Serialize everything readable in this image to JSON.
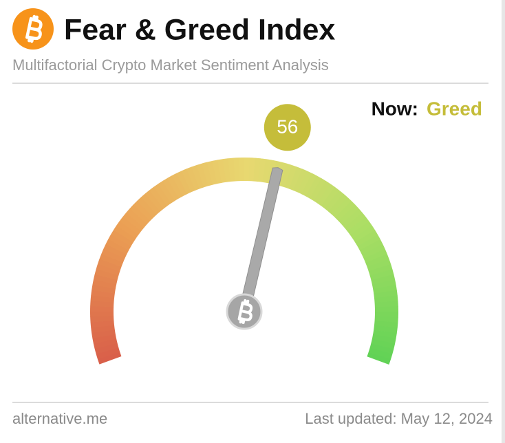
{
  "chart_data": {
    "type": "gauge",
    "title": "Fear & Greed Index",
    "subtitle": "Multifactorial Crypto Market Sentiment Analysis",
    "value": 56,
    "ylim": [
      0,
      100
    ],
    "status_prefix": "Now:",
    "status": "Greed",
    "status_color": "#c5bd3a",
    "source": "alternative.me",
    "updated": "Last updated: May 12, 2024"
  }
}
